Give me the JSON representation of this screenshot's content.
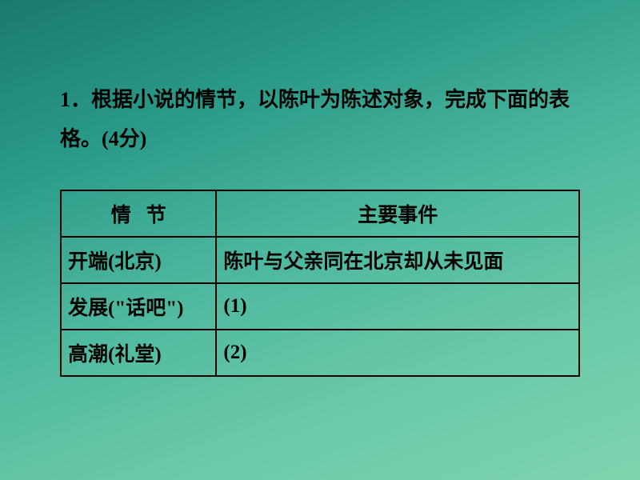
{
  "question": {
    "number": "1",
    "text_part1": "．根据小说的情节，以陈叶为陈述对象，完成下面的表格。",
    "points": "(4分)"
  },
  "table": {
    "headers": {
      "col1_char1": "情",
      "col1_char2": "节",
      "col2": "主要事件"
    },
    "rows": [
      {
        "stage": "开端(北京)",
        "event": "陈叶与父亲同在北京却从未见面"
      },
      {
        "stage": "发展(\"话吧\")",
        "event": "(1)"
      },
      {
        "stage": "高潮(礼堂)",
        "event": "(2)"
      }
    ]
  },
  "colors": {
    "text": "#000000",
    "border": "#000000",
    "bg_gradient_start": "#1a7a6e",
    "bg_gradient_end": "#7ed4af"
  },
  "typography": {
    "body_fontsize": 26,
    "table_fontsize": 25,
    "font_family": "SimSun"
  }
}
